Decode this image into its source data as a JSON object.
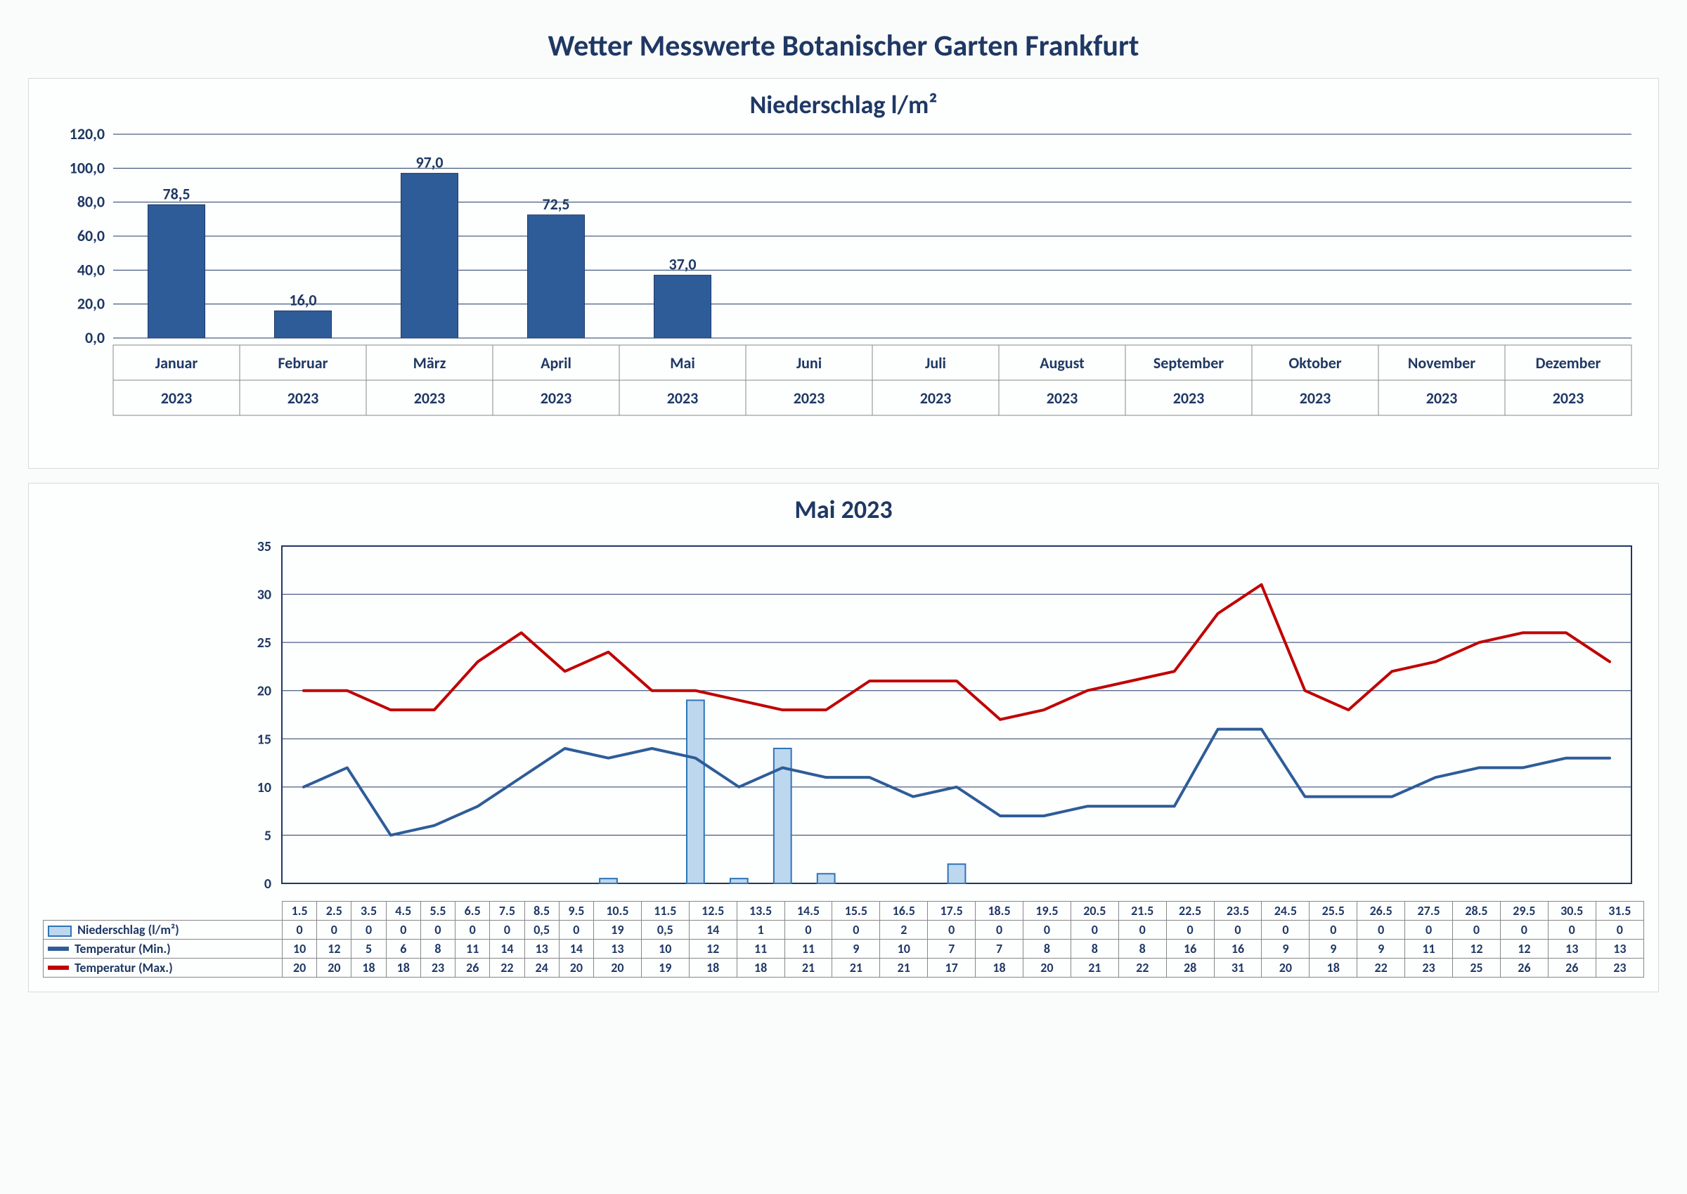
{
  "page_title": "Wetter Messwerte Botanischer Garten Frankfurt",
  "bar_chart": {
    "type": "bar",
    "title": "Niederschlag l/m²",
    "title_fontsize": 36,
    "title_color": "#1f3864",
    "background_color": "#fdfefe",
    "grid_color": "#1f3864",
    "bar_fill": "#2e5c99",
    "bar_stroke": "#1f3864",
    "label_color": "#1f3864",
    "label_fontsize": 22,
    "axis_fontsize": 22,
    "ylim": [
      0,
      120
    ],
    "ytick_step": 20,
    "categories": [
      "Januar",
      "Februar",
      "März",
      "April",
      "Mai",
      "Juni",
      "Juli",
      "August",
      "September",
      "Oktober",
      "November",
      "Dezember"
    ],
    "year": "2023",
    "values": [
      78.5,
      16.0,
      97.0,
      72.5,
      37.0,
      null,
      null,
      null,
      null,
      null,
      null,
      null
    ],
    "value_labels": [
      "78,5",
      "16,0",
      "97,0",
      "72,5",
      "37,0",
      "",
      "",
      "",
      "",
      "",
      "",
      ""
    ],
    "bar_width": 0.45
  },
  "line_chart": {
    "type": "combo",
    "title": "Mai 2023",
    "title_fontsize": 36,
    "title_color": "#1f3864",
    "background_color": "#fdfefe",
    "grid_color": "#1f3864",
    "axis_fontsize": 20,
    "ylim": [
      0,
      35
    ],
    "ytick_step": 5,
    "days": [
      "1.5",
      "2.5",
      "3.5",
      "4.5",
      "5.5",
      "6.5",
      "7.5",
      "8.5",
      "9.5",
      "10.5",
      "11.5",
      "12.5",
      "13.5",
      "14.5",
      "15.5",
      "16.5",
      "17.5",
      "18.5",
      "19.5",
      "20.5",
      "21.5",
      "22.5",
      "23.5",
      "24.5",
      "25.5",
      "26.5",
      "27.5",
      "28.5",
      "29.5",
      "30.5",
      "31.5"
    ],
    "series": {
      "precip": {
        "label": "Niederschlag (l/m²)",
        "color_fill": "#bdd7ee",
        "color_stroke": "#2e75b6",
        "values": [
          0,
          0,
          0,
          0,
          0,
          0,
          0,
          0.5,
          0,
          19,
          0.5,
          14,
          1,
          0,
          0,
          2,
          0,
          0,
          0,
          0,
          0,
          0,
          0,
          0,
          0,
          0,
          0,
          0,
          0,
          0,
          0
        ],
        "value_labels": [
          "0",
          "0",
          "0",
          "0",
          "0",
          "0",
          "0",
          "0,5",
          "0",
          "19",
          "0,5",
          "14",
          "1",
          "0",
          "0",
          "2",
          "0",
          "0",
          "0",
          "0",
          "0",
          "0",
          "0",
          "0",
          "0",
          "0",
          "0",
          "0",
          "0",
          "0",
          "0"
        ]
      },
      "tmin": {
        "label": "Temperatur (Min.)",
        "color": "#2e5c99",
        "line_width": 4,
        "values": [
          10,
          12,
          5,
          6,
          8,
          11,
          14,
          13,
          14,
          13,
          10,
          12,
          11,
          11,
          9,
          10,
          7,
          7,
          8,
          8,
          8,
          16,
          16,
          9,
          9,
          9,
          11,
          12,
          12,
          13,
          13
        ]
      },
      "tmax": {
        "label": "Temperatur (Max.)",
        "color": "#c00000",
        "line_width": 4,
        "values": [
          20,
          20,
          18,
          18,
          23,
          26,
          22,
          24,
          20,
          20,
          19,
          18,
          18,
          21,
          21,
          21,
          17,
          18,
          20,
          21,
          22,
          28,
          31,
          20,
          18,
          22,
          23,
          25,
          26,
          26,
          23
        ]
      }
    },
    "legend": {
      "precip_swatch_fill": "#bdd7ee",
      "precip_swatch_stroke": "#2e75b6",
      "tmin_swatch": "#2e5c99",
      "tmax_swatch": "#c00000"
    }
  }
}
